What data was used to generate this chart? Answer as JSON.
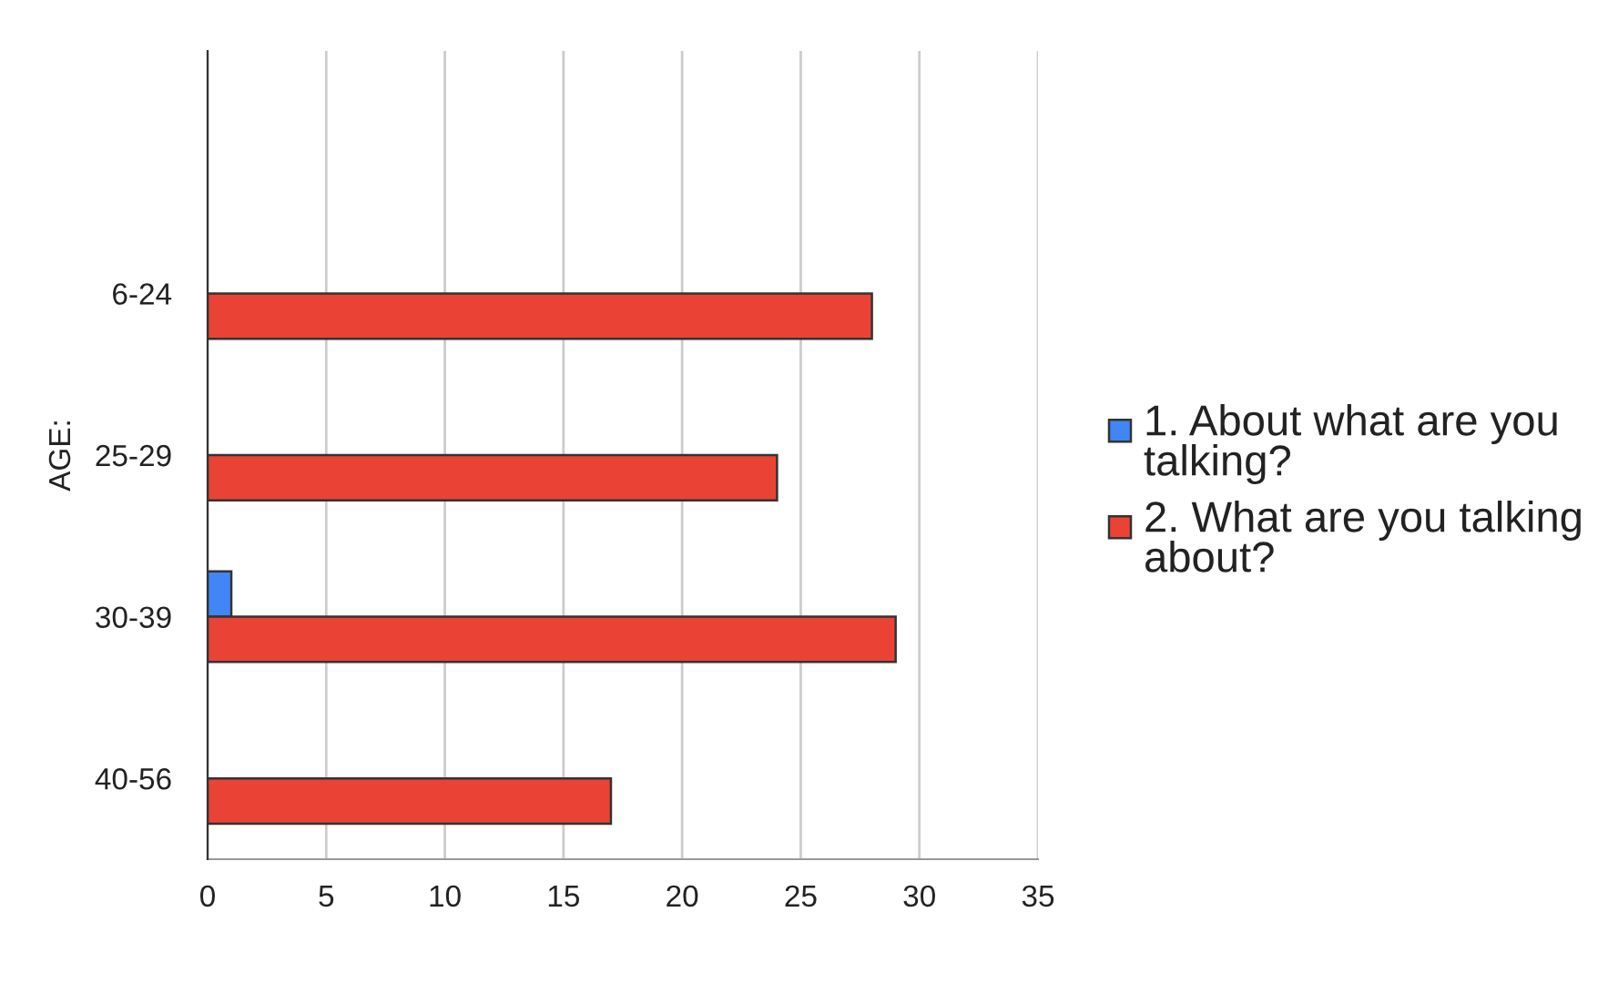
{
  "chart_data": {
    "type": "bar",
    "orientation": "horizontal",
    "ylabel": "AGE:",
    "categories": [
      null,
      "6-24",
      "25-29",
      "30-39",
      "40-56"
    ],
    "series": [
      {
        "name": "1. About what are you talking?",
        "color": "#4285f4",
        "values": [
          null,
          null,
          null,
          1,
          null
        ]
      },
      {
        "name": "2. What are you talking about?",
        "color": "#ea4335",
        "values": [
          null,
          28,
          24,
          29,
          17
        ]
      }
    ],
    "xlim": [
      0,
      35
    ],
    "xticks": [
      0,
      5,
      10,
      15,
      20,
      25,
      30,
      35
    ],
    "grid": "x",
    "legend": "right"
  }
}
